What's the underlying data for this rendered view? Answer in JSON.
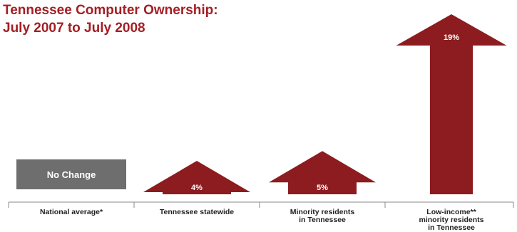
{
  "chart_data": {
    "type": "bar",
    "title_lines": [
      "Tennessee Computer Ownership:",
      "July 2007 to July 2008"
    ],
    "categories": [
      [
        "National average*"
      ],
      [
        "Tennessee statewide"
      ],
      [
        "Minority residents",
        "in Tennessee"
      ],
      [
        "Low-income**",
        "minority residents",
        "in Tennessee"
      ]
    ],
    "values": [
      0,
      4,
      5,
      19
    ],
    "data_labels": [
      "No Change",
      "4%",
      "5%",
      "19%"
    ],
    "unit": "%",
    "mark_style": [
      "box",
      "arrow",
      "arrow",
      "arrow"
    ],
    "colors": {
      "title": "#a31f24",
      "arrow": "#8c1c1f",
      "neutral_box": "#6e6e6e",
      "label_text": "#ffffff",
      "axis": "#8a8a8a",
      "category_text": "#222222"
    }
  }
}
